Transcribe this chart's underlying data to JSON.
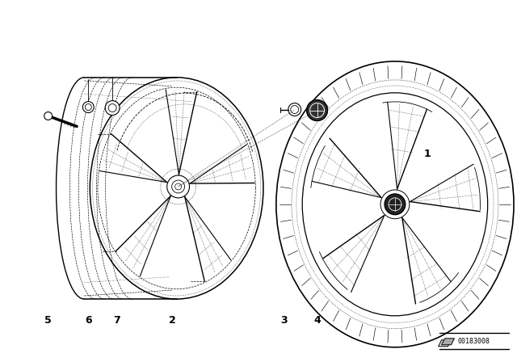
{
  "bg_color": "#ffffff",
  "fig_width": 6.4,
  "fig_height": 4.48,
  "dpi": 100,
  "line_color": "#000000",
  "part_number": "00183008",
  "label_fontsize": 9
}
